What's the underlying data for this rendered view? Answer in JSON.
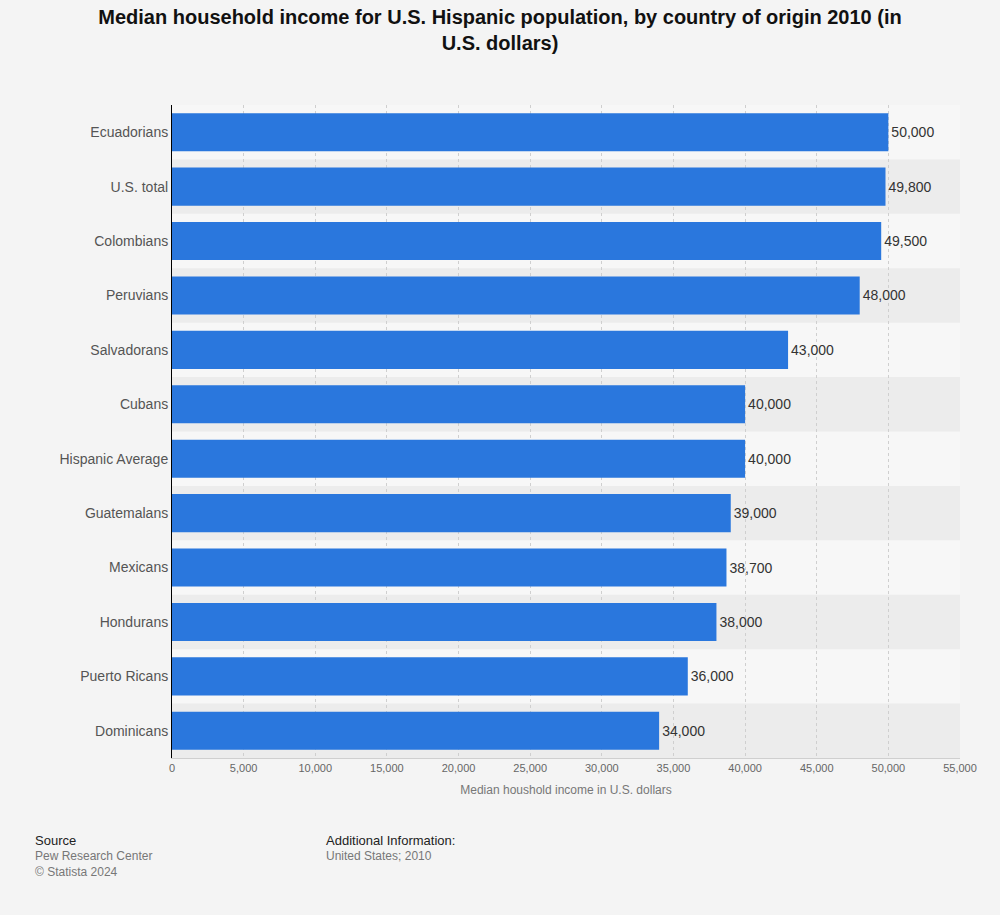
{
  "chart_data": {
    "type": "bar",
    "orientation": "horizontal",
    "title": [
      "Median household income for U.S. Hispanic population, by country of origin 2010 (in",
      "U.S. dollars)"
    ],
    "x_label": "Median houshold income in U.S. dollars",
    "categories": [
      "Ecuadorians",
      "U.S. total",
      "Colombians",
      "Peruvians",
      "Salvadorans",
      "Cubans",
      "Hispanic Average",
      "Guatemalans",
      "Mexicans",
      "Hondurans",
      "Puerto Ricans",
      "Dominicans"
    ],
    "values": [
      50000,
      49800,
      49500,
      48000,
      43000,
      40000,
      40000,
      39000,
      38700,
      38000,
      36000,
      34000
    ],
    "value_labels": [
      "50,000",
      "49,800",
      "49,500",
      "48,000",
      "43,000",
      "40,000",
      "40,000",
      "39,000",
      "38,700",
      "38,000",
      "36,000",
      "34,000"
    ],
    "data_labels": true,
    "color": "#2a77dd",
    "xlim": [
      0,
      55000
    ],
    "xticks": [
      0,
      {
        "value": 5000,
        "label": "5,000"
      },
      {
        "value": 10000,
        "label": "10,000"
      },
      {
        "value": 15000,
        "label": "15,000"
      },
      {
        "value": 20000,
        "label": "20,000"
      },
      {
        "value": 25000,
        "label": "25,000"
      },
      {
        "value": 30000,
        "label": "30,000"
      },
      {
        "value": 35000,
        "label": "35,000"
      },
      {
        "value": 40000,
        "label": "40,000"
      },
      {
        "value": 45000,
        "label": "45,000"
      },
      {
        "value": 50000,
        "label": "50,000"
      },
      {
        "value": 55000,
        "label": "55,000"
      }
    ],
    "grid": true,
    "footer": {
      "source_label": "Source",
      "source": "Pew Research Center",
      "copyright": "© Statista 2024",
      "info_label": "Additional Information:",
      "info": "United States; 2010"
    }
  }
}
